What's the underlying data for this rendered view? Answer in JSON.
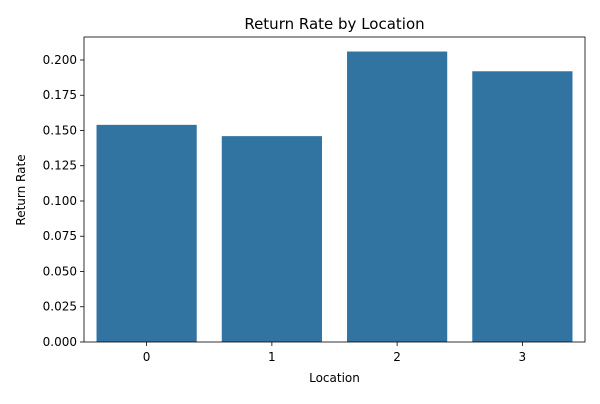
{
  "chart_data": {
    "type": "bar",
    "title": "Return Rate by Location",
    "xlabel": "Location",
    "ylabel": "Return Rate",
    "categories": [
      "0",
      "1",
      "2",
      "3"
    ],
    "values": [
      0.154,
      0.146,
      0.206,
      0.192
    ],
    "ylim": [
      0,
      0.2163
    ],
    "yticks": [
      0.0,
      0.025,
      0.05,
      0.075,
      0.1,
      0.125,
      0.15,
      0.175,
      0.2
    ],
    "ytick_labels": [
      "0.000",
      "0.025",
      "0.050",
      "0.075",
      "0.100",
      "0.125",
      "0.150",
      "0.175",
      "0.200"
    ],
    "grid": false,
    "bar_color": "#3274a1"
  }
}
